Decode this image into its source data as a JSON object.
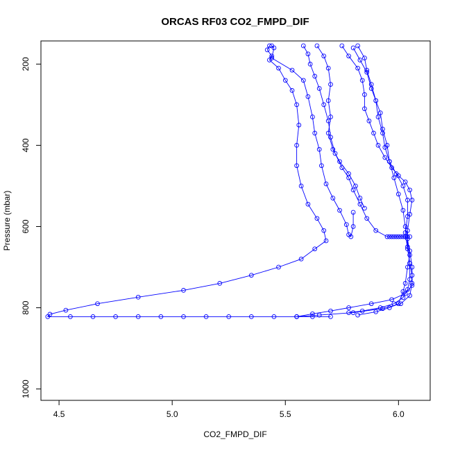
{
  "chart_data": {
    "type": "line",
    "title": "ORCAS RF03 CO2_FMPD_DIF",
    "xlabel": "CO2_FMPD_DIF",
    "ylabel": "Pressure (mbar)",
    "xlim": [
      4.42,
      6.14
    ],
    "ylim": [
      1028,
      143
    ],
    "y_reversed": true,
    "x_ticks": [
      "4.5",
      "5.0",
      "5.5",
      "6.0"
    ],
    "y_ticks": [
      "200",
      "400",
      "600",
      "800",
      "1000"
    ],
    "marker": "open-circle",
    "color": "#0000ff",
    "grid": false,
    "legend": "none",
    "series": [
      {
        "values": [
          [
            5.43,
            155
          ],
          [
            5.42,
            165
          ],
          [
            5.44,
            180
          ],
          [
            5.43,
            190
          ],
          [
            5.47,
            210
          ],
          [
            5.5,
            240
          ],
          [
            5.53,
            265
          ],
          [
            5.55,
            300
          ],
          [
            5.56,
            350
          ],
          [
            5.55,
            400
          ],
          [
            5.55,
            450
          ],
          [
            5.57,
            500
          ],
          [
            5.6,
            545
          ],
          [
            5.64,
            580
          ],
          [
            5.67,
            610
          ],
          [
            5.68,
            635
          ],
          [
            5.63,
            655
          ],
          [
            5.57,
            680
          ],
          [
            5.47,
            700
          ],
          [
            5.35,
            720
          ],
          [
            5.21,
            740
          ],
          [
            5.05,
            757
          ],
          [
            4.85,
            774
          ],
          [
            4.67,
            790
          ],
          [
            4.53,
            806
          ],
          [
            4.46,
            816
          ],
          [
            4.45,
            822
          ],
          [
            4.55,
            822
          ],
          [
            4.65,
            822
          ],
          [
            4.75,
            822
          ],
          [
            4.85,
            822
          ],
          [
            4.95,
            822
          ],
          [
            5.05,
            822
          ],
          [
            5.15,
            822
          ],
          [
            5.25,
            822
          ],
          [
            5.35,
            822
          ],
          [
            5.45,
            822
          ],
          [
            5.55,
            822
          ],
          [
            5.62,
            822
          ],
          [
            5.7,
            822
          ]
        ]
      },
      {
        "values": [
          [
            5.58,
            155
          ],
          [
            5.6,
            175
          ],
          [
            5.61,
            200
          ],
          [
            5.63,
            230
          ],
          [
            5.65,
            260
          ],
          [
            5.67,
            300
          ],
          [
            5.69,
            340
          ],
          [
            5.7,
            380
          ],
          [
            5.72,
            420
          ],
          [
            5.75,
            455
          ],
          [
            5.78,
            480
          ],
          [
            5.8,
            510
          ],
          [
            5.83,
            545
          ],
          [
            5.86,
            580
          ],
          [
            5.9,
            610
          ],
          [
            5.95,
            625
          ],
          [
            6.03,
            625
          ],
          [
            6.05,
            660
          ],
          [
            6.06,
            700
          ],
          [
            6.06,
            740
          ],
          [
            6.05,
            770
          ],
          [
            6.01,
            790
          ],
          [
            5.93,
            802
          ],
          [
            5.8,
            812
          ],
          [
            5.65,
            818
          ],
          [
            5.55,
            822
          ]
        ]
      },
      {
        "values": [
          [
            5.44,
            155
          ],
          [
            5.45,
            160
          ],
          [
            5.44,
            185
          ],
          [
            5.53,
            215
          ],
          [
            5.58,
            240
          ],
          [
            5.6,
            280
          ],
          [
            5.62,
            330
          ],
          [
            5.63,
            370
          ],
          [
            5.65,
            410
          ],
          [
            5.66,
            450
          ],
          [
            5.68,
            495
          ],
          [
            5.71,
            530
          ],
          [
            5.74,
            560
          ],
          [
            5.77,
            595
          ],
          [
            5.78,
            620
          ],
          [
            5.79,
            625
          ],
          [
            5.8,
            600
          ],
          [
            5.8,
            565
          ]
        ]
      },
      {
        "values": [
          [
            5.64,
            155
          ],
          [
            5.67,
            180
          ],
          [
            5.69,
            210
          ],
          [
            5.7,
            250
          ],
          [
            5.69,
            290
          ],
          [
            5.7,
            330
          ],
          [
            5.69,
            370
          ],
          [
            5.71,
            410
          ],
          [
            5.74,
            440
          ],
          [
            5.78,
            470
          ],
          [
            5.81,
            500
          ],
          [
            5.83,
            530
          ],
          [
            5.85,
            555
          ]
        ]
      },
      {
        "values": [
          [
            5.75,
            155
          ],
          [
            5.78,
            180
          ],
          [
            5.82,
            210
          ],
          [
            5.84,
            240
          ],
          [
            5.85,
            275
          ],
          [
            5.85,
            310
          ],
          [
            5.87,
            340
          ],
          [
            5.89,
            370
          ],
          [
            5.91,
            400
          ],
          [
            5.94,
            430
          ],
          [
            5.97,
            455
          ],
          [
            6.0,
            475
          ],
          [
            6.03,
            490
          ],
          [
            6.05,
            510
          ],
          [
            6.06,
            535
          ],
          [
            6.05,
            570
          ],
          [
            6.04,
            610
          ],
          [
            6.04,
            650
          ],
          [
            6.05,
            690
          ],
          [
            6.06,
            720
          ],
          [
            6.06,
            745
          ],
          [
            6.03,
            765
          ],
          [
            5.97,
            780
          ],
          [
            5.88,
            790
          ],
          [
            5.78,
            800
          ],
          [
            5.7,
            808
          ],
          [
            5.62,
            815
          ],
          [
            5.55,
            822
          ]
        ]
      },
      {
        "values": [
          [
            5.8,
            160
          ],
          [
            5.83,
            190
          ],
          [
            5.86,
            220
          ],
          [
            5.88,
            260
          ],
          [
            5.9,
            290
          ],
          [
            5.92,
            320
          ],
          [
            5.93,
            360
          ],
          [
            5.95,
            400
          ],
          [
            5.96,
            440
          ],
          [
            5.98,
            480
          ],
          [
            6.0,
            520
          ],
          [
            6.02,
            560
          ],
          [
            6.03,
            600
          ],
          [
            6.04,
            630
          ],
          [
            6.05,
            670
          ],
          [
            6.04,
            700
          ],
          [
            6.03,
            740
          ],
          [
            6.02,
            760
          ],
          [
            6.0,
            790
          ],
          [
            5.96,
            800
          ],
          [
            5.9,
            810
          ],
          [
            5.82,
            818
          ]
        ]
      },
      {
        "values": [
          [
            5.82,
            155
          ],
          [
            5.85,
            185
          ],
          [
            5.86,
            215
          ],
          [
            5.88,
            250
          ],
          [
            5.9,
            290
          ],
          [
            5.91,
            330
          ],
          [
            5.93,
            370
          ],
          [
            5.94,
            405
          ],
          [
            5.96,
            440
          ],
          [
            5.99,
            470
          ],
          [
            6.02,
            500
          ],
          [
            6.04,
            535
          ],
          [
            6.04,
            575
          ],
          [
            6.03,
            615
          ],
          [
            6.04,
            655
          ],
          [
            6.05,
            690
          ],
          [
            6.05,
            730
          ],
          [
            6.04,
            755
          ],
          [
            6.02,
            775
          ],
          [
            5.98,
            790
          ],
          [
            5.92,
            800
          ],
          [
            5.84,
            808
          ],
          [
            5.78,
            812
          ]
        ]
      },
      {
        "values": [
          [
            5.96,
            625
          ],
          [
            5.97,
            625
          ],
          [
            5.98,
            625
          ],
          [
            5.99,
            625
          ],
          [
            6.0,
            625
          ],
          [
            6.01,
            625
          ],
          [
            6.02,
            625
          ],
          [
            6.03,
            625
          ],
          [
            6.04,
            625
          ],
          [
            6.05,
            625
          ]
        ]
      }
    ]
  }
}
